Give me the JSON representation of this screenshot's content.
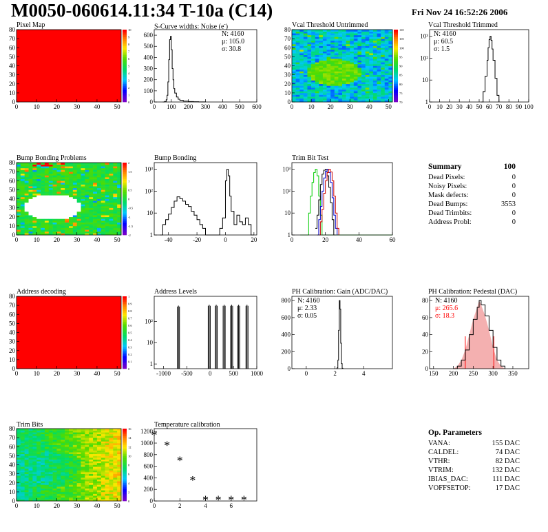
{
  "header": {
    "title": "M0050-060614.11:34 T-10a (C14)",
    "date": "Fri Nov 24 16:52:26 2006"
  },
  "colors": {
    "map_red": "#ff0000",
    "line_black": "#000000",
    "trim_green": "#00cc00",
    "trim_blue": "#0000cc",
    "trim_red": "#cc0000",
    "stat_red": "#ff0000"
  },
  "panels": {
    "pixel_map": {
      "title": "Pixel Map"
    },
    "scurve": {
      "title": "S-Curve widths: Noise (e",
      "title_sup": "-",
      "title_end": ")",
      "stats": [
        {
          "k": "N:",
          "v": "4160"
        },
        {
          "k": "μ:",
          "v": "105.0"
        },
        {
          "k": "σ:",
          "v": "30.8"
        }
      ]
    },
    "vcal_untrimmed": {
      "title": "Vcal Threshold Untrimmed"
    },
    "vcal_trimmed": {
      "title": "Vcal Threshold Trimmed",
      "stats": [
        {
          "k": "N:",
          "v": "4160"
        },
        {
          "k": "μ:",
          "v": "60.5"
        },
        {
          "k": "σ:",
          "v": "1.5"
        }
      ]
    },
    "bump_problems": {
      "title": "Bump Bonding Problems"
    },
    "bump_bonding": {
      "title": "Bump Bonding"
    },
    "trim_bit_test": {
      "title": "Trim Bit Test"
    },
    "address_decoding": {
      "title": "Address decoding"
    },
    "address_levels": {
      "title": "Address Levels"
    },
    "ph_gain": {
      "title": "PH Calibration: Gain (ADC/DAC)",
      "stats": [
        {
          "k": "N:",
          "v": "4160"
        },
        {
          "k": "μ:",
          "v": "2.33"
        },
        {
          "k": "σ:",
          "v": "0.05"
        }
      ]
    },
    "ph_pedestal": {
      "title": "PH Calibration: Pedestal (DAC)",
      "stats": [
        {
          "k": "N:",
          "v": "4160"
        },
        {
          "k": "μ:",
          "v": "265.6"
        },
        {
          "k": "σ:",
          "v": "18.3"
        }
      ]
    },
    "trim_bits": {
      "title": "Trim Bits"
    },
    "temperature": {
      "title": "Temperature calibration"
    }
  },
  "summary": {
    "title": "Summary",
    "total": "100",
    "rows": [
      {
        "label": "Dead Pixels:",
        "value": "0"
      },
      {
        "label": "Noisy Pixels:",
        "value": "0"
      },
      {
        "label": "Mask defects:",
        "value": "0"
      },
      {
        "label": "Dead Bumps:",
        "value": "3553"
      },
      {
        "label": "Dead Trimbits:",
        "value": "0"
      },
      {
        "label": "Address Probl:",
        "value": "0"
      }
    ]
  },
  "op_params": {
    "title": "Op. Parameters",
    "rows": [
      {
        "label": "VANA:",
        "value": "155 DAC"
      },
      {
        "label": "CALDEL:",
        "value": "74 DAC"
      },
      {
        "label": "VTHR:",
        "value": "82 DAC"
      },
      {
        "label": "VTRIM:",
        "value": "132 DAC"
      },
      {
        "label": "IBIAS_DAC:",
        "value": "111 DAC"
      },
      {
        "label": "VOFFSETOP:",
        "value": "17 DAC"
      }
    ]
  },
  "chart_data": [
    {
      "id": "pixel_map",
      "type": "heatmap",
      "title": "Pixel Map",
      "xlim": [
        0,
        52
      ],
      "ylim": [
        0,
        80
      ],
      "xticks": [
        "0",
        "10",
        "20",
        "30",
        "40",
        "50"
      ],
      "yticks": [
        "0",
        "10",
        "20",
        "30",
        "40",
        "50",
        "60",
        "70",
        "80"
      ],
      "palette_scale": [
        "0",
        "1",
        "2",
        "3",
        "4",
        "5",
        "6",
        "7",
        "8",
        "9",
        "10"
      ],
      "uniform_value": 10
    },
    {
      "id": "scurve",
      "type": "line",
      "title": "S-Curve widths: Noise (e-)",
      "xlim": [
        0,
        600
      ],
      "ylim": [
        0,
        650
      ],
      "xticks": [
        "0",
        "100",
        "200",
        "300",
        "400",
        "500",
        "600"
      ],
      "yticks": [
        "0",
        "100",
        "200",
        "300",
        "400",
        "500",
        "600"
      ],
      "x": [
        50,
        60,
        70,
        75,
        80,
        85,
        90,
        95,
        100,
        105,
        110,
        115,
        120,
        130,
        140,
        150,
        170,
        200,
        230,
        260,
        300
      ],
      "y": [
        0,
        5,
        20,
        60,
        180,
        380,
        560,
        590,
        470,
        300,
        200,
        120,
        80,
        45,
        25,
        15,
        8,
        4,
        2,
        1,
        0
      ]
    },
    {
      "id": "vcal_untrimmed",
      "type": "heatmap",
      "title": "Vcal Threshold Untrimmed",
      "xlim": [
        0,
        52
      ],
      "ylim": [
        0,
        80
      ],
      "xticks": [
        "0",
        "10",
        "20",
        "30",
        "40",
        "50"
      ],
      "yticks": [
        "0",
        "10",
        "20",
        "30",
        "40",
        "50",
        "60",
        "70",
        "80"
      ],
      "palette_scale": [
        "70",
        "75",
        "80",
        "85",
        "90",
        "95",
        "100",
        "105",
        "110"
      ],
      "spot_center": [
        21,
        32
      ],
      "spot_radius": 14
    },
    {
      "id": "vcal_trimmed",
      "type": "line",
      "title": "Vcal Threshold Trimmed",
      "xlim": [
        0,
        100
      ],
      "ylim_log": [
        1,
        2000
      ],
      "log_y": true,
      "xticks": [
        "0",
        "10",
        "20",
        "30",
        "40",
        "50",
        "60",
        "70",
        "80",
        "90",
        "100"
      ],
      "yticks": [
        "1",
        "10",
        "10²",
        "10³"
      ],
      "x": [
        52,
        54,
        56,
        58,
        59,
        60,
        61,
        62,
        63,
        64,
        66,
        68,
        70
      ],
      "y": [
        1,
        3,
        15,
        80,
        300,
        700,
        1000,
        650,
        260,
        80,
        12,
        2,
        1
      ]
    },
    {
      "id": "bump_problems",
      "type": "heatmap",
      "title": "Bump Bonding Problems",
      "xlim": [
        0,
        52
      ],
      "ylim": [
        0,
        80
      ],
      "xticks": [
        "0",
        "10",
        "20",
        "30",
        "40",
        "50"
      ],
      "yticks": [
        "0",
        "10",
        "20",
        "30",
        "40",
        "50",
        "60",
        "70",
        "80"
      ],
      "palette_scale": [
        "-2",
        "-1.5",
        "-1",
        "-0.5",
        "0",
        "0.5",
        "1",
        "1.5",
        "2"
      ],
      "hole_center": [
        17,
        30
      ],
      "hole_radius": 14
    },
    {
      "id": "bump_bonding",
      "type": "line",
      "title": "Bump Bonding",
      "xlim": [
        -50,
        22
      ],
      "ylim_log": [
        1,
        2000
      ],
      "log_y": true,
      "xticks": [
        "-40",
        "-20",
        "0",
        "20"
      ],
      "yticks": [
        "1",
        "10",
        "10²",
        "10³"
      ],
      "x": [
        -46,
        -44,
        -42,
        -40,
        -38,
        -36,
        -34,
        -32,
        -30,
        -28,
        -26,
        -24,
        -22,
        -20,
        -18,
        -16,
        -14,
        -12,
        -10,
        -8,
        -6,
        -4,
        -2,
        0,
        1,
        2,
        3,
        4,
        6,
        8,
        10,
        12,
        14,
        16,
        18,
        20
      ],
      "y": [
        1,
        3,
        5,
        9,
        18,
        35,
        55,
        45,
        35,
        25,
        20,
        12,
        8,
        5,
        3,
        2,
        1,
        1,
        1,
        0,
        1,
        2,
        6,
        300,
        1000,
        500,
        60,
        12,
        3,
        8,
        4,
        3,
        6,
        3,
        1,
        0
      ]
    },
    {
      "id": "trim_bit_test",
      "type": "line",
      "title": "Trim Bit Test",
      "xlim": [
        0,
        60
      ],
      "ylim_log": [
        1,
        2000
      ],
      "log_y": true,
      "xticks": [
        "0",
        "20",
        "40",
        "60"
      ],
      "yticks": [
        "1",
        "10",
        "10²",
        "10³"
      ],
      "series": [
        {
          "color": "green",
          "x": [
            5,
            9,
            10,
            11,
            12,
            13,
            14,
            15,
            16,
            17,
            18,
            20,
            60
          ],
          "y": [
            1,
            1,
            10,
            60,
            250,
            700,
            1000,
            500,
            60,
            8,
            1,
            1,
            1
          ]
        },
        {
          "color": "black",
          "x": [
            14,
            15,
            16,
            17,
            18,
            19,
            20,
            21,
            22,
            23,
            24,
            25,
            26
          ],
          "y": [
            2,
            8,
            40,
            200,
            600,
            900,
            1000,
            500,
            150,
            30,
            5,
            1,
            1
          ]
        },
        {
          "color": "blue",
          "x": [
            15,
            16,
            17,
            18,
            19,
            20,
            21,
            22,
            23,
            24,
            25,
            26,
            27
          ],
          "y": [
            1,
            5,
            20,
            100,
            400,
            800,
            1000,
            700,
            250,
            50,
            8,
            2,
            1
          ]
        },
        {
          "color": "red",
          "x": [
            16,
            17,
            18,
            19,
            20,
            21,
            22,
            23,
            24,
            25,
            26,
            27,
            28
          ],
          "y": [
            1,
            4,
            15,
            80,
            300,
            700,
            1000,
            750,
            300,
            60,
            10,
            2,
            1
          ]
        }
      ]
    },
    {
      "id": "address_decoding",
      "type": "heatmap",
      "title": "Address decoding",
      "xlim": [
        0,
        52
      ],
      "ylim": [
        0,
        80
      ],
      "xticks": [
        "0",
        "10",
        "20",
        "30",
        "40",
        "50"
      ],
      "yticks": [
        "0",
        "10",
        "20",
        "30",
        "40",
        "50",
        "60",
        "70",
        "80"
      ],
      "palette_scale": [
        "0",
        "0.1",
        "0.2",
        "0.3",
        "0.4",
        "0.5",
        "0.6",
        "0.7",
        "0.8",
        "0.9",
        "1"
      ],
      "uniform_value": 1
    },
    {
      "id": "address_levels",
      "type": "bar",
      "title": "Address Levels",
      "xlim": [
        -1200,
        1000
      ],
      "ylim_log": [
        0.6,
        1500
      ],
      "log_y": true,
      "xticks": [
        "-1000",
        "-500",
        "0",
        "500",
        "1000"
      ],
      "yticks": [
        "1",
        "10",
        "10²"
      ],
      "peaks": [
        {
          "x": -680,
          "y": 550
        },
        {
          "x": -20,
          "y": 600
        },
        {
          "x": 130,
          "y": 600
        },
        {
          "x": 300,
          "y": 600
        },
        {
          "x": 460,
          "y": 600
        },
        {
          "x": 610,
          "y": 600
        },
        {
          "x": 790,
          "y": 600
        }
      ]
    },
    {
      "id": "ph_gain",
      "type": "line",
      "title": "PH Calibration: Gain (ADC/DAC)",
      "xlim": [
        -1,
        6
      ],
      "ylim": [
        0,
        850
      ],
      "xticks": [
        "0",
        "2",
        "4"
      ],
      "yticks": [
        "0",
        "200",
        "400",
        "600",
        "800"
      ],
      "x": [
        2.1,
        2.15,
        2.2,
        2.25,
        2.3,
        2.35,
        2.4,
        2.45,
        2.5,
        2.55
      ],
      "y": [
        0,
        10,
        100,
        450,
        800,
        700,
        300,
        60,
        5,
        0
      ]
    },
    {
      "id": "ph_pedestal",
      "type": "line",
      "title": "PH Calibration: Pedestal (DAC)",
      "xlim": [
        140,
        390
      ],
      "ylim": [
        0,
        85
      ],
      "xticks": [
        "150",
        "200",
        "250",
        "300",
        "350"
      ],
      "yticks": [
        "0",
        "20",
        "40",
        "60",
        "80"
      ],
      "x": [
        200,
        210,
        220,
        230,
        240,
        250,
        260,
        265,
        270,
        280,
        290,
        300,
        310,
        320,
        330
      ],
      "y": [
        0,
        3,
        10,
        22,
        40,
        58,
        72,
        80,
        75,
        62,
        45,
        25,
        10,
        3,
        0
      ],
      "cut_lines": [
        230,
        302
      ]
    },
    {
      "id": "trim_bits",
      "type": "heatmap",
      "title": "Trim Bits",
      "xlim": [
        0,
        52
      ],
      "ylim": [
        0,
        80
      ],
      "xticks": [
        "0",
        "10",
        "20",
        "30",
        "40",
        "50"
      ],
      "yticks": [
        "0",
        "10",
        "20",
        "30",
        "40",
        "50",
        "60",
        "70",
        "80"
      ],
      "palette_scale": [
        "0",
        "2",
        "4",
        "6",
        "8",
        "10",
        "12",
        "14",
        "16"
      ]
    },
    {
      "id": "temperature",
      "type": "scatter",
      "title": "Temperature calibration",
      "xlim": [
        0,
        8
      ],
      "ylim": [
        0,
        1250
      ],
      "xticks": [
        "0",
        "2",
        "4",
        "6"
      ],
      "yticks": [
        "0",
        "200",
        "400",
        "600",
        "800",
        "1000",
        "1200"
      ],
      "x": [
        0,
        1,
        2,
        3,
        4,
        5,
        6,
        7
      ],
      "y": [
        1150,
        970,
        710,
        370,
        30,
        30,
        30,
        30
      ]
    }
  ]
}
